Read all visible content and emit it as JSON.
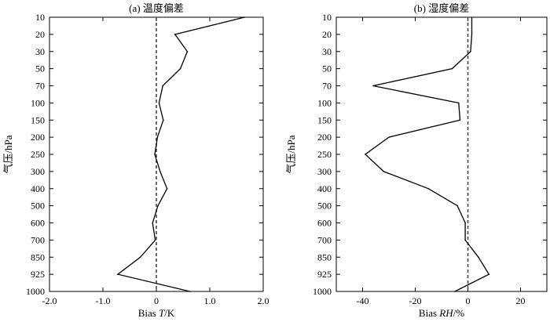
{
  "chart_data": [
    {
      "type": "line",
      "title": "(a) 温度偏差",
      "xlabel_prefix": "Bias ",
      "xlabel_var": "T",
      "xlabel_unit": "/K",
      "ylabel": "气压/hPa",
      "xlim": [
        -2.0,
        2.0
      ],
      "xticks": [
        "-2.0",
        "-1.0",
        "0",
        "1.0",
        "2.0"
      ],
      "xtick_values": [
        -2.0,
        -1.0,
        0,
        1.0,
        2.0
      ],
      "yaxis_scale": "categorical",
      "y_categories": [
        "10",
        "20",
        "30",
        "50",
        "70",
        "100",
        "150",
        "200",
        "250",
        "300",
        "400",
        "500",
        "600",
        "700",
        "850",
        "925",
        "1000"
      ],
      "reference_line": {
        "x": 0,
        "style": "dashed"
      },
      "series": [
        {
          "y": [
            "10",
            "20",
            "30",
            "50",
            "70",
            "100",
            "150",
            "200",
            "250",
            "300",
            "400",
            "500",
            "600",
            "700",
            "850",
            "925",
            "1000"
          ],
          "x": [
            1.65,
            0.35,
            0.58,
            0.45,
            0.12,
            0.05,
            0.13,
            0.02,
            -0.03,
            0.07,
            0.2,
            0.03,
            -0.07,
            -0.02,
            -0.3,
            -0.72,
            0.63
          ]
        }
      ]
    },
    {
      "type": "line",
      "title": "(b) 湿度偏差",
      "xlabel_prefix": "Bias ",
      "xlabel_var": "RH",
      "xlabel_unit": "/%",
      "ylabel": "气压/hPa",
      "xlim": [
        -50,
        30
      ],
      "xticks": [
        "-40",
        "-20",
        "0",
        "20"
      ],
      "xtick_values": [
        -40,
        -20,
        0,
        20
      ],
      "yaxis_scale": "categorical",
      "y_categories": [
        "10",
        "20",
        "30",
        "50",
        "70",
        "100",
        "150",
        "200",
        "250",
        "300",
        "400",
        "500",
        "600",
        "700",
        "850",
        "925",
        "1000"
      ],
      "reference_line": {
        "x": 0,
        "style": "dashed"
      },
      "series": [
        {
          "y": [
            "10",
            "20",
            "30",
            "50",
            "70",
            "100",
            "150",
            "200",
            "250",
            "300",
            "400",
            "500",
            "600",
            "700",
            "850",
            "925",
            "1000"
          ],
          "x": [
            1.5,
            1.5,
            1.0,
            -6,
            -36,
            -3.5,
            -3,
            -30,
            -39,
            -32,
            -15,
            -4,
            -1,
            -1,
            4,
            8,
            -5
          ]
        }
      ]
    }
  ]
}
